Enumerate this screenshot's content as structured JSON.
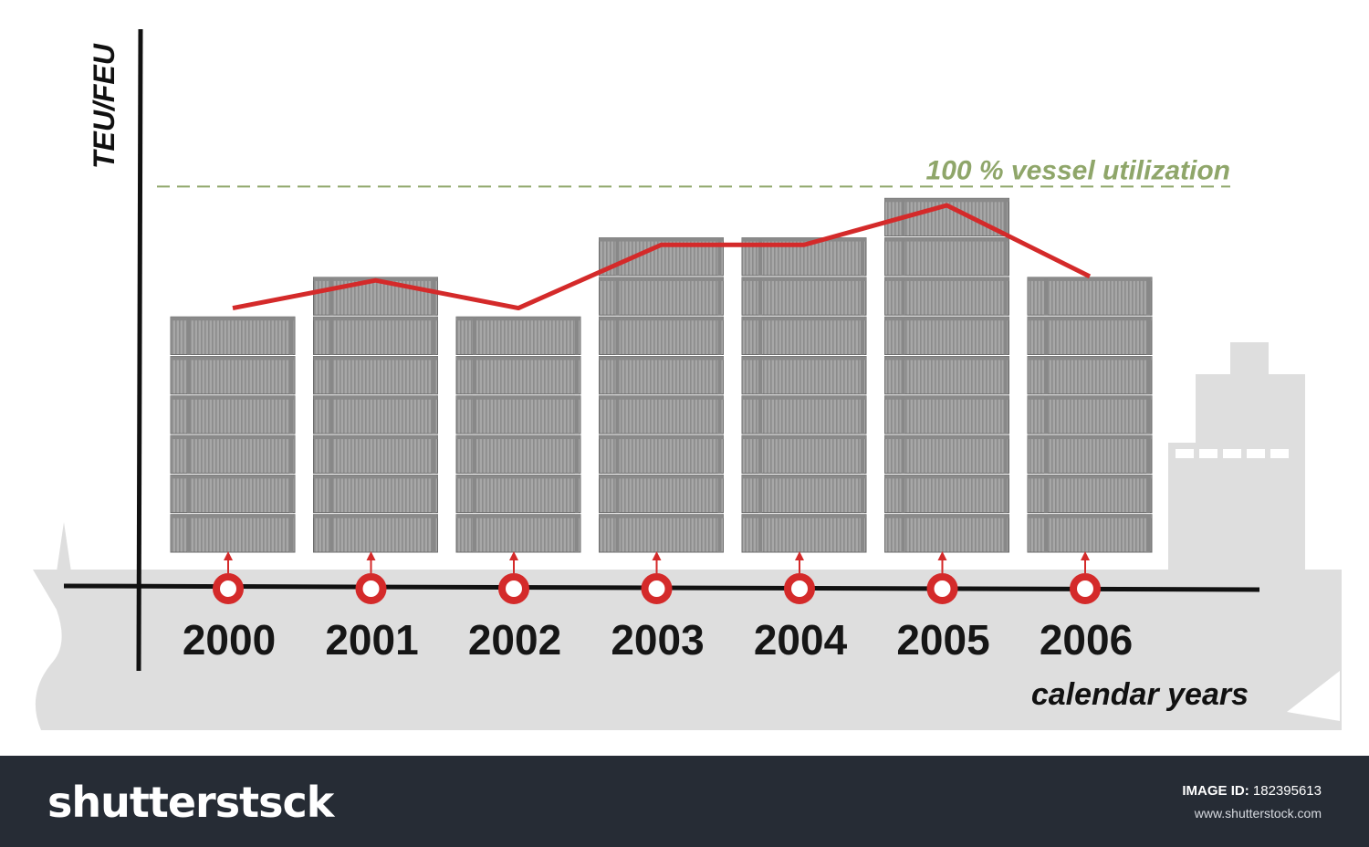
{
  "chart_data": {
    "type": "bar",
    "y_axis_label": "TEU/FEU",
    "x_axis_label": "calendar years",
    "reference_line_label": "100 % vessel utilization",
    "categories": [
      "2000",
      "2001",
      "2002",
      "2003",
      "2004",
      "2005",
      "2006"
    ],
    "series": [
      {
        "kind": "stacked-containers",
        "values": [
          6,
          7,
          6,
          8,
          8,
          9,
          7
        ]
      },
      {
        "kind": "line",
        "values": [
          6.2,
          6.9,
          6.2,
          7.8,
          7.8,
          8.8,
          7.0
        ]
      }
    ],
    "ylim": [
      0,
      10
    ],
    "reference_value": 9.6,
    "colors": {
      "container": "#a4a4a4",
      "line": "#d42a2a",
      "reference": "#8fa66a",
      "ship": "#dedede",
      "axis": "#111111",
      "marker": "#d42a2a"
    },
    "grid": false
  },
  "footer": {
    "logo": "shutterstsck",
    "image_id_label": "IMAGE ID:",
    "image_id_value": "182395613",
    "site": "www.shutterstock.com"
  }
}
